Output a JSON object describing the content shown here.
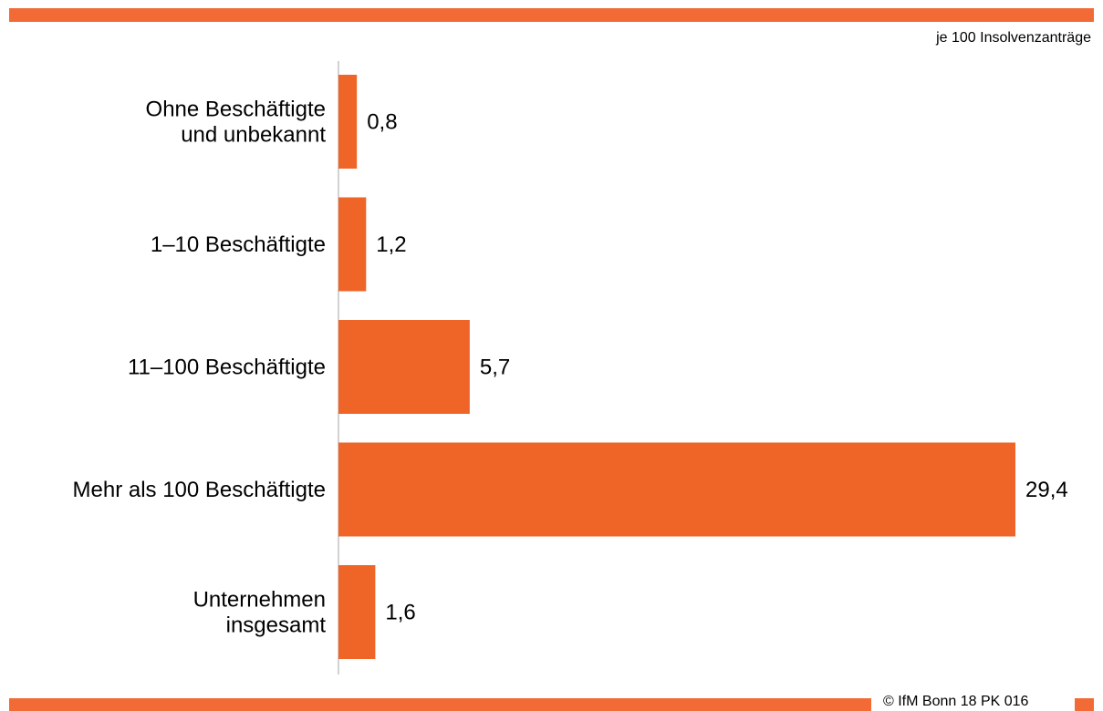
{
  "colors": {
    "accent": "#f26a35",
    "bar": "#ef6528",
    "axis": "#a6a6a6"
  },
  "unit_note": "je 100 Insolvenzanträge",
  "copyright": "© IfM Bonn 18 PK 016",
  "chart_data": {
    "type": "bar",
    "orientation": "horizontal",
    "categories": [
      [
        "Ohne Beschäftigte",
        "und unbekannt"
      ],
      [
        "1–10 Beschäftigte"
      ],
      [
        "11–100 Beschäftigte"
      ],
      [
        "Mehr als 100 Beschäftigte"
      ],
      [
        "Unternehmen",
        "insgesamt"
      ]
    ],
    "values": [
      0.8,
      1.2,
      5.7,
      29.4,
      1.6
    ],
    "value_labels": [
      "0,8",
      "1,2",
      "5,7",
      "29,4",
      "1,6"
    ],
    "xlim": [
      0,
      29.4
    ],
    "grid": false,
    "legend": "none"
  }
}
